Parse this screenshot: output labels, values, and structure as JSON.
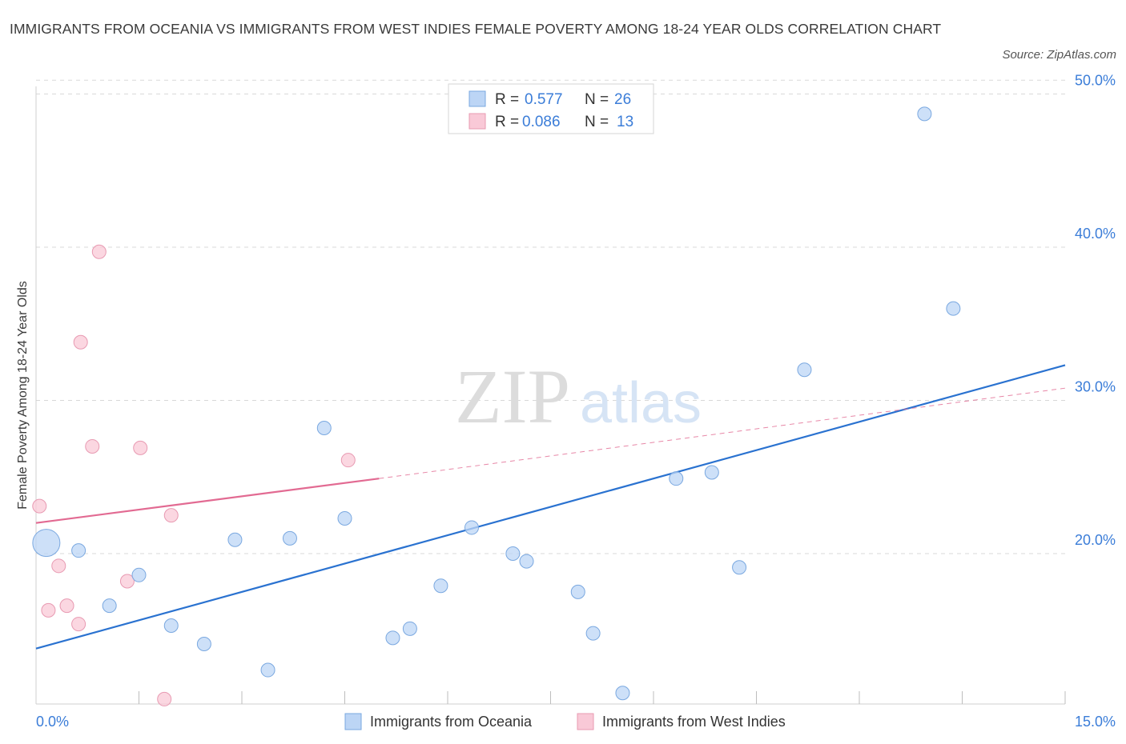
{
  "title": "IMMIGRANTS FROM OCEANIA VS IMMIGRANTS FROM WEST INDIES FEMALE POVERTY AMONG 18-24 YEAR OLDS CORRELATION CHART",
  "source": "Source: ZipAtlas.com",
  "watermark": {
    "zip": "ZIP",
    "atlas": "atlas"
  },
  "colors": {
    "oceania_fill": "#bcd5f5",
    "oceania_stroke": "#7aa8e0",
    "oceania_line": "#2a72d0",
    "westindies_fill": "#f9c9d7",
    "westindies_stroke": "#e89ab2",
    "westindies_line": "#e26a92",
    "axis_label": "#3b7dd8",
    "grid": "#d8d8d8"
  },
  "legend": {
    "rows": [
      {
        "r_label": "R =",
        "r_value": "0.577",
        "n_label": "N =",
        "n_value": "26"
      },
      {
        "r_label": "R =",
        "r_value": "0.086",
        "n_label": "N =",
        "n_value": "13"
      }
    ]
  },
  "bottom_legend": [
    "Immigrants from Oceania",
    "Immigrants from West Indies"
  ],
  "chart_data": {
    "type": "scatter",
    "title": "IMMIGRANTS FROM OCEANIA VS IMMIGRANTS FROM WEST INDIES FEMALE POVERTY AMONG 18-24 YEAR OLDS CORRELATION CHART",
    "xlabel": "",
    "ylabel": "Female Poverty Among 18-24 Year Olds",
    "xlim": [
      0,
      15
    ],
    "ylim": [
      9,
      50.9
    ],
    "x_tick_labels": [
      "0.0%",
      "15.0%"
    ],
    "y_ticks": [
      20,
      30,
      40,
      50
    ],
    "y_tick_labels": [
      "20.0%",
      "30.0%",
      "40.0%",
      "50.0%"
    ],
    "series": [
      {
        "name": "Immigrants from Oceania",
        "R": 0.577,
        "N": 26,
        "points": [
          {
            "x": 0.15,
            "y": 20.7,
            "size": "large"
          },
          {
            "x": 0.62,
            "y": 20.2
          },
          {
            "x": 1.07,
            "y": 16.6
          },
          {
            "x": 1.5,
            "y": 18.6
          },
          {
            "x": 1.97,
            "y": 15.3
          },
          {
            "x": 2.45,
            "y": 14.1
          },
          {
            "x": 2.9,
            "y": 20.9
          },
          {
            "x": 3.38,
            "y": 12.4
          },
          {
            "x": 3.7,
            "y": 21.0
          },
          {
            "x": 4.2,
            "y": 28.2
          },
          {
            "x": 4.5,
            "y": 22.3
          },
          {
            "x": 5.2,
            "y": 14.5
          },
          {
            "x": 5.45,
            "y": 15.1
          },
          {
            "x": 5.9,
            "y": 17.9
          },
          {
            "x": 6.35,
            "y": 21.7
          },
          {
            "x": 6.95,
            "y": 20.0
          },
          {
            "x": 7.15,
            "y": 19.5
          },
          {
            "x": 7.9,
            "y": 17.5
          },
          {
            "x": 8.12,
            "y": 14.8
          },
          {
            "x": 8.55,
            "y": 10.9
          },
          {
            "x": 9.33,
            "y": 24.9
          },
          {
            "x": 9.85,
            "y": 25.3
          },
          {
            "x": 10.25,
            "y": 19.1
          },
          {
            "x": 11.2,
            "y": 32.0
          },
          {
            "x": 12.95,
            "y": 48.7
          },
          {
            "x": 13.37,
            "y": 36.0
          }
        ],
        "trend": {
          "x0": 0,
          "y0": 13.8,
          "x1": 15,
          "y1": 32.3
        }
      },
      {
        "name": "Immigrants from West Indies",
        "R": 0.086,
        "N": 13,
        "points": [
          {
            "x": 0.05,
            "y": 23.1
          },
          {
            "x": 0.18,
            "y": 16.3
          },
          {
            "x": 0.33,
            "y": 19.2
          },
          {
            "x": 0.45,
            "y": 16.6
          },
          {
            "x": 0.62,
            "y": 15.4
          },
          {
            "x": 0.65,
            "y": 33.8
          },
          {
            "x": 0.82,
            "y": 27.0
          },
          {
            "x": 0.92,
            "y": 39.7
          },
          {
            "x": 1.33,
            "y": 18.2
          },
          {
            "x": 1.52,
            "y": 26.9
          },
          {
            "x": 1.87,
            "y": 10.5
          },
          {
            "x": 1.97,
            "y": 22.5
          },
          {
            "x": 4.55,
            "y": 26.1
          }
        ],
        "trend_solid": {
          "x0": 0,
          "y0": 22.0,
          "x1": 5.0,
          "y1": 24.9
        },
        "trend_dashed": {
          "x0": 5.0,
          "y0": 24.9,
          "x1": 15,
          "y1": 30.8
        }
      }
    ]
  }
}
